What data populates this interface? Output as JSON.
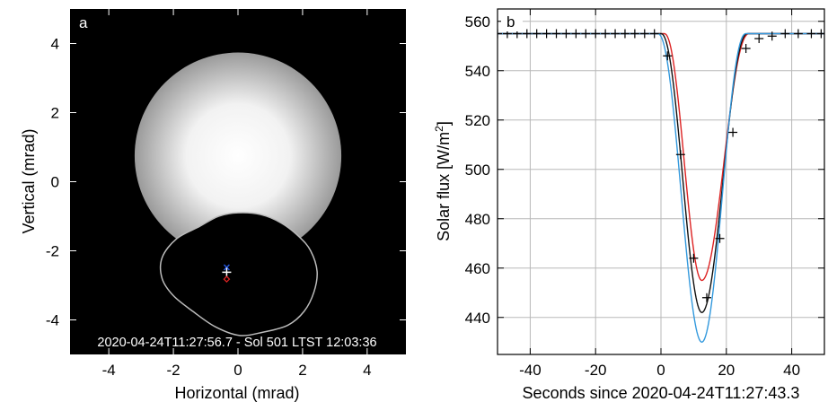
{
  "chart_data": [
    {
      "type": "image",
      "panel_label": "a",
      "xlabel": "Horizontal (mrad)",
      "ylabel": "Vertical (mrad)",
      "xlim": [
        -5.2,
        5.2
      ],
      "ylim": [
        -5.0,
        5.0
      ],
      "xticks": [
        -4,
        -2,
        0,
        2,
        4
      ],
      "yticks": [
        -4,
        -2,
        0,
        2,
        4
      ],
      "annotation": "2020-04-24T11:27:56.7 - Sol 501 LTST 12:03:36",
      "sun_disk": {
        "cx": 0.0,
        "cy": 0.75,
        "r": 3.2
      },
      "occulter_outline": [
        [
          -2.35,
          -2.2
        ],
        [
          -1.9,
          -1.65
        ],
        [
          -1.2,
          -1.3
        ],
        [
          -0.6,
          -1.0
        ],
        [
          0.0,
          -0.9
        ],
        [
          0.7,
          -0.95
        ],
        [
          1.35,
          -1.2
        ],
        [
          1.9,
          -1.6
        ],
        [
          2.25,
          -2.0
        ],
        [
          2.45,
          -2.6
        ],
        [
          2.35,
          -3.2
        ],
        [
          2.05,
          -3.75
        ],
        [
          1.55,
          -4.15
        ],
        [
          0.8,
          -4.35
        ],
        [
          0.05,
          -4.45
        ],
        [
          -0.7,
          -4.2
        ],
        [
          -1.4,
          -3.75
        ],
        [
          -2.0,
          -3.3
        ],
        [
          -2.35,
          -2.8
        ]
      ],
      "markers": [
        {
          "symbol": "x",
          "x": -0.35,
          "y": -2.48,
          "color": "#2255dd"
        },
        {
          "symbol": "+",
          "x": -0.35,
          "y": -2.62,
          "color": "#ffffff"
        },
        {
          "symbol": "diamond",
          "x": -0.35,
          "y": -2.82,
          "color": "#dd2222"
        }
      ]
    },
    {
      "type": "line",
      "panel_label": "b",
      "xlabel": "Seconds since 2020-04-24T11:27:43.3",
      "ylabel": "Solar flux [W/m",
      "ylabel_sup": "2",
      "ylabel_end": "]",
      "xlim": [
        -50,
        50
      ],
      "ylim": [
        425,
        565
      ],
      "xticks": [
        -40,
        -20,
        0,
        20,
        40
      ],
      "yticks": [
        440,
        460,
        480,
        500,
        520,
        540,
        560
      ],
      "grid": true,
      "baseline": 555,
      "series": [
        {
          "color": "#dd2222",
          "center": 12.5,
          "depth": 100,
          "ingress": [
            1,
            14.5
          ],
          "egress": [
            12.5,
            27
          ]
        },
        {
          "color": "#111111",
          "center": 12.5,
          "depth": 113,
          "ingress": [
            0,
            13.5
          ],
          "egress": [
            12.5,
            26.5
          ]
        },
        {
          "color": "#3399dd",
          "center": 12.5,
          "depth": 125,
          "ingress": [
            -1,
            12.5
          ],
          "egress": [
            12.5,
            26
          ]
        }
      ],
      "observations": {
        "x": [
          -50,
          -47,
          -44,
          -41,
          -38,
          -35,
          -32,
          -29,
          -26,
          -23,
          -20,
          -17,
          -14,
          -11,
          -8,
          -5,
          -2,
          2,
          6,
          10,
          14,
          18,
          22,
          26,
          30,
          34,
          38,
          42,
          46,
          49
        ],
        "y": [
          555,
          555,
          555,
          555,
          555,
          555,
          555,
          555,
          555,
          555,
          555,
          555,
          555,
          555,
          555,
          555,
          555,
          546,
          506,
          464,
          448,
          472,
          515,
          549,
          553,
          554,
          555,
          555,
          555,
          555
        ]
      }
    }
  ]
}
